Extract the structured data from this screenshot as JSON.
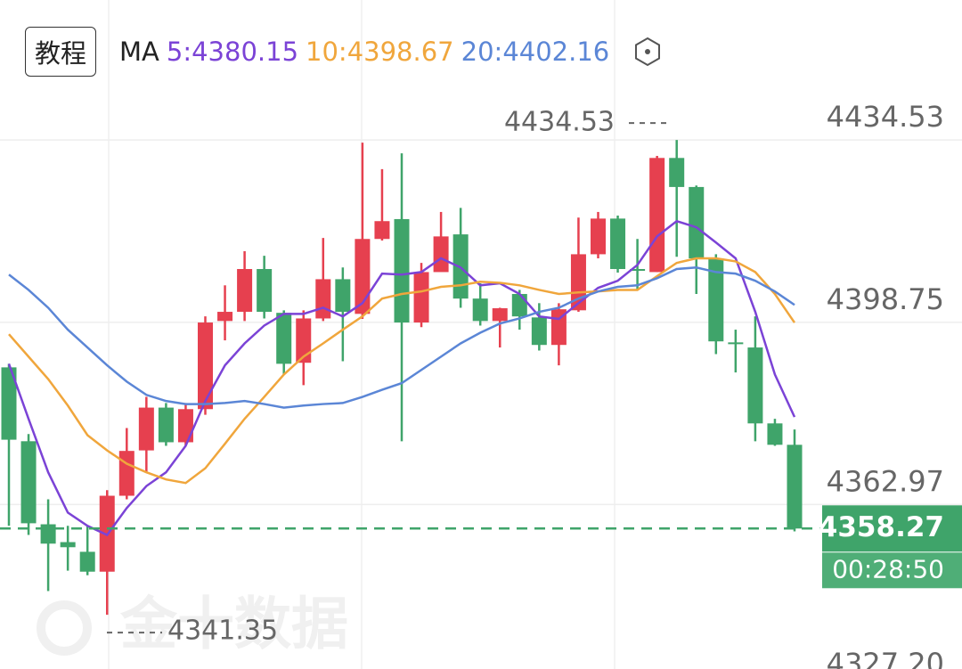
{
  "chart_data": {
    "type": "candlestick",
    "tutorial_button": "教程",
    "indicator": "MA",
    "ylim": [
      4327.2,
      4462.0
    ],
    "yticks": [
      4434.53,
      4398.75,
      4362.97,
      {
        "value": 4327.2,
        "label": "4327.20"
      }
    ],
    "grid": true,
    "up_color": "#e6404f",
    "down_color": "#3fa46a",
    "open": [
      4389.9,
      4375.4,
      4359.1,
      4355.6,
      4353.7,
      4349.8,
      4364.7,
      4373.6,
      4382.0,
      4375.2,
      4381.7,
      4399.0,
      4400.8,
      4409.2,
      4400.6,
      4390.8,
      4399.5,
      4407.2,
      4400.4,
      4415.1,
      4419.0,
      4398.7,
      4408.6,
      4416.0,
      4403.4,
      4399.0,
      4404.3,
      4399.7,
      4394.3,
      4401.1,
      4412.1,
      4419.1,
      4409.2,
      4408.6,
      4431.0,
      4425.3,
      4411.3,
      4394.8,
      4393.8,
      4378.9,
      4374.7
    ],
    "high": [
      4390.6,
      4376.8,
      4364.0,
      4358.8,
      4358.8,
      4365.8,
      4378.0,
      4384.1,
      4382.9,
      4382.9,
      4399.9,
      4406.0,
      4412.7,
      4411.8,
      4401.1,
      4401.1,
      4415.3,
      4409.5,
      4434.0,
      4428.8,
      4431.9,
      4410.4,
      4420.4,
      4421.2,
      4406.4,
      4401.6,
      4405.1,
      4402.5,
      4402.5,
      4419.3,
      4420.4,
      4419.7,
      4415.1,
      4431.4,
      4434.53,
      4425.6,
      4412.1,
      4397.3,
      4399.9,
      4379.8,
      4377.7
    ],
    "low": [
      4358.8,
      4357.0,
      4346.0,
      4350.0,
      4349.1,
      4341.35,
      4364.0,
      4369.3,
      4374.5,
      4374.5,
      4380.6,
      4395.2,
      4399.0,
      4399.5,
      4388.5,
      4386.4,
      4399.0,
      4391.1,
      4399.4,
      4414.8,
      4375.4,
      4397.8,
      4409.5,
      4401.6,
      4398.1,
      4393.8,
      4397.3,
      4393.2,
      4390.3,
      4400.8,
      4411.3,
      4408.5,
      4405.1,
      4408.6,
      4411.6,
      4404.3,
      4392.5,
      4388.9,
      4375.4,
      4374.5,
      4357.7
    ],
    "close": [
      4375.7,
      4359.3,
      4355.3,
      4354.6,
      4349.8,
      4364.7,
      4373.5,
      4382.0,
      4375.2,
      4381.7,
      4398.7,
      4400.8,
      4409.2,
      4400.8,
      4390.6,
      4399.5,
      4407.2,
      4400.8,
      4415.1,
      4418.6,
      4398.7,
      4408.6,
      4415.6,
      4403.4,
      4399.0,
      4401.5,
      4399.9,
      4394.3,
      4401.3,
      4412.1,
      4419.1,
      4409.2,
      4409.0,
      4431.0,
      4425.3,
      4411.3,
      4395.0,
      4394.5,
      4378.9,
      4374.7,
      4358.27
    ],
    "series": [
      {
        "name": "5:4380.15",
        "color": "#7b43d6",
        "values": [
          4390.6,
          4379.8,
          4369.3,
          4361.4,
          4358.8,
          4357.0,
          4362.3,
          4366.6,
          4369.3,
          4374.5,
          4383.3,
          4390.3,
          4394.6,
          4398.1,
          4400.4,
          4400.4,
          4401.6,
          4399.9,
          4402.5,
          4408.3,
          4408.1,
          4408.6,
          4411.3,
          4409.5,
          4406.0,
          4406.4,
          4404.3,
          4399.9,
          4399.4,
          4402.5,
          4405.5,
          4406.9,
          4410.0,
          4415.6,
          4418.6,
          4417.4,
          4414.4,
          4411.3,
          4400.8,
          4388.5,
          4380.15
        ]
      },
      {
        "name": "10:4398.67",
        "color": "#f0a63c",
        "values": [
          4396.4,
          4392.0,
          4387.6,
          4382.4,
          4376.6,
          4373.6,
          4371.0,
          4369.3,
          4367.9,
          4367.2,
          4370.1,
          4374.9,
          4379.8,
          4384.1,
          4388.5,
          4392.0,
          4394.6,
          4397.3,
          4399.9,
          4403.4,
          4404.3,
          4404.8,
          4405.7,
          4406.0,
          4406.7,
          4406.5,
          4406.0,
          4405.1,
          4404.3,
          4404.6,
          4404.8,
          4405.1,
          4405.1,
          4407.8,
          4410.4,
          4411.3,
          4411.3,
          4410.7,
          4408.6,
          4404.3,
          4398.67
        ]
      },
      {
        "name": "20:4402.16",
        "color": "#5b86d6",
        "values": [
          4408.1,
          4405.1,
          4401.6,
          4397.3,
          4393.8,
          4390.3,
          4387.1,
          4384.5,
          4383.3,
          4382.7,
          4382.7,
          4382.9,
          4383.3,
          4382.7,
          4382.0,
          4382.4,
          4382.7,
          4382.9,
          4384.1,
          4385.5,
          4386.8,
          4389.4,
          4392.0,
          4394.6,
          4396.7,
          4398.5,
          4399.5,
          4400.8,
          4401.6,
          4403.4,
          4404.8,
          4405.7,
          4406.0,
          4407.4,
          4409.2,
          4409.5,
          4408.6,
          4408.3,
          4406.9,
          4404.8,
          4402.16
        ]
      }
    ],
    "high_marker": 4434.53,
    "low_marker": 4341.35,
    "last_price": 4358.27,
    "countdown": "00:28:50",
    "watermark": "金十数据"
  }
}
